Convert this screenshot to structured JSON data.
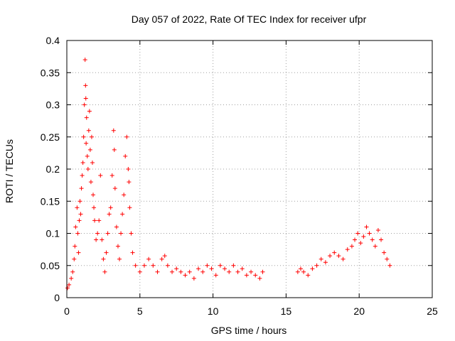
{
  "chart_data": {
    "type": "scatter",
    "title": "Day 057 of 2022, Rate Of TEC Index for receiver ufpr",
    "xlabel": "GPS time / hours",
    "ylabel": "ROTI / TECUs",
    "xlim": [
      0,
      25
    ],
    "ylim": [
      0,
      0.4
    ],
    "xticks": [
      0,
      5,
      10,
      15,
      20,
      25
    ],
    "xtick_labels": [
      "0",
      "5",
      "10",
      "15",
      "20",
      "25"
    ],
    "yticks": [
      0,
      0.05,
      0.1,
      0.15,
      0.2,
      0.25,
      0.3,
      0.35,
      0.4
    ],
    "ytick_labels": [
      "0",
      "0.05",
      "0.1",
      "0.15",
      "0.2",
      "0.25",
      "0.3",
      "0.35",
      "0.4"
    ],
    "grid": true,
    "marker": "+",
    "color": "#ff0000",
    "gaps": [
      [
        13.5,
        15.7
      ]
    ],
    "series": [
      {
        "x": [
          0.05,
          0.15,
          0.3,
          0.4,
          0.5,
          0.55,
          0.6,
          0.7,
          0.75,
          0.8,
          0.85,
          0.9,
          0.95,
          1.0,
          1.05,
          1.1,
          1.15,
          1.2,
          1.25,
          1.28,
          1.3,
          1.32,
          1.35,
          1.4,
          1.45,
          1.5,
          1.55,
          1.6,
          1.65,
          1.7,
          1.75,
          1.8,
          1.85,
          1.9,
          2.0,
          2.1,
          2.2,
          2.3,
          2.4,
          2.5,
          2.6,
          2.7,
          2.8,
          2.9,
          3.0,
          3.1,
          3.2,
          3.25,
          3.3,
          3.4,
          3.5,
          3.6,
          3.7,
          3.8,
          3.9,
          4.0,
          4.1,
          4.2,
          4.25,
          4.3,
          4.4,
          4.5,
          4.7,
          5.0,
          5.3,
          5.6,
          5.9,
          6.2,
          6.5,
          6.7,
          6.9,
          7.2,
          7.5,
          7.8,
          8.1,
          8.4,
          8.7,
          9.0,
          9.3,
          9.6,
          9.9,
          10.2,
          10.5,
          10.8,
          11.1,
          11.4,
          11.7,
          12.0,
          12.3,
          12.6,
          12.9,
          13.2,
          13.4,
          15.8,
          16.0,
          16.2,
          16.5,
          16.8,
          17.1,
          17.4,
          17.7,
          18.0,
          18.3,
          18.6,
          18.9,
          19.2,
          19.5,
          19.7,
          19.9,
          20.1,
          20.3,
          20.5,
          20.7,
          20.9,
          21.1,
          21.3,
          21.5,
          21.7,
          21.9,
          22.1
        ],
        "y": [
          0.015,
          0.02,
          0.03,
          0.04,
          0.06,
          0.08,
          0.11,
          0.14,
          0.1,
          0.07,
          0.12,
          0.15,
          0.13,
          0.17,
          0.19,
          0.21,
          0.25,
          0.3,
          0.37,
          0.33,
          0.31,
          0.24,
          0.28,
          0.22,
          0.2,
          0.26,
          0.29,
          0.23,
          0.18,
          0.25,
          0.21,
          0.16,
          0.14,
          0.12,
          0.09,
          0.1,
          0.12,
          0.19,
          0.09,
          0.06,
          0.04,
          0.07,
          0.1,
          0.13,
          0.14,
          0.19,
          0.26,
          0.23,
          0.17,
          0.11,
          0.08,
          0.06,
          0.1,
          0.13,
          0.16,
          0.22,
          0.25,
          0.2,
          0.18,
          0.14,
          0.1,
          0.07,
          0.05,
          0.04,
          0.05,
          0.06,
          0.05,
          0.04,
          0.06,
          0.065,
          0.05,
          0.04,
          0.045,
          0.04,
          0.035,
          0.04,
          0.03,
          0.045,
          0.04,
          0.05,
          0.045,
          0.035,
          0.05,
          0.045,
          0.04,
          0.05,
          0.04,
          0.045,
          0.035,
          0.04,
          0.035,
          0.03,
          0.04,
          0.04,
          0.045,
          0.04,
          0.035,
          0.045,
          0.05,
          0.06,
          0.055,
          0.065,
          0.07,
          0.065,
          0.06,
          0.075,
          0.08,
          0.09,
          0.1,
          0.085,
          0.095,
          0.11,
          0.1,
          0.09,
          0.08,
          0.105,
          0.09,
          0.07,
          0.06,
          0.05
        ]
      }
    ]
  }
}
